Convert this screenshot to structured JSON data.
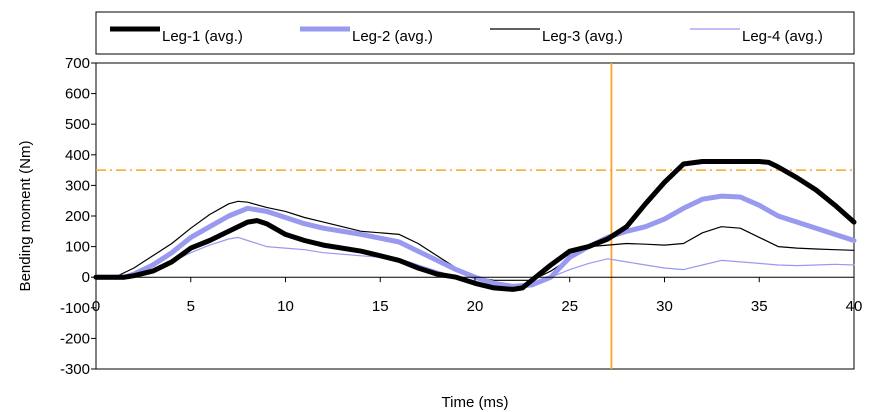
{
  "chart_data": {
    "type": "line",
    "title": "",
    "xlabel": "Time (ms)",
    "ylabel": "Bending moment (Nm)",
    "xlim": [
      0,
      40
    ],
    "ylim": [
      -300,
      700
    ],
    "xticks": [
      0,
      5,
      10,
      15,
      20,
      25,
      30,
      35,
      40
    ],
    "yticks": [
      -300,
      -200,
      -100,
      0,
      100,
      200,
      300,
      400,
      500,
      600,
      700
    ],
    "grid": false,
    "legend": "top",
    "reference_lines": [
      {
        "orientation": "horizontal",
        "value": 350,
        "style": "dash-dot",
        "color": "#f5a623"
      },
      {
        "orientation": "vertical",
        "value": 27.2,
        "style": "solid",
        "color": "#f5a623"
      }
    ],
    "series": [
      {
        "name": "Leg-1 (avg.)",
        "color": "#000000",
        "style": "thick",
        "x": [
          0,
          1.5,
          2,
          3,
          4,
          5,
          6,
          7,
          8,
          8.5,
          9,
          10,
          11,
          12,
          14,
          16,
          17,
          18,
          19,
          20,
          21,
          22,
          22.5,
          23,
          24,
          25,
          26,
          27,
          28,
          29,
          30,
          31,
          32,
          33,
          34,
          35,
          35.5,
          36,
          37,
          38,
          39,
          40
        ],
        "y": [
          0,
          0,
          5,
          20,
          50,
          95,
          120,
          150,
          180,
          185,
          175,
          140,
          120,
          105,
          85,
          55,
          30,
          10,
          0,
          -20,
          -35,
          -40,
          -35,
          -10,
          40,
          85,
          100,
          125,
          165,
          240,
          310,
          370,
          378,
          378,
          378,
          378,
          375,
          360,
          325,
          285,
          235,
          180
        ]
      },
      {
        "name": "Leg-2 (avg.)",
        "color": "#9999f0",
        "style": "thick",
        "x": [
          0,
          1.5,
          2,
          3,
          4,
          5,
          6,
          7,
          8,
          9,
          10,
          11,
          12,
          14,
          16,
          17,
          18,
          19,
          20,
          21,
          22,
          23,
          24,
          25,
          26,
          27,
          28,
          29,
          30,
          31,
          32,
          33,
          34,
          35,
          36,
          37,
          38,
          39,
          40
        ],
        "y": [
          0,
          0,
          10,
          40,
          80,
          130,
          165,
          200,
          225,
          215,
          195,
          175,
          160,
          140,
          115,
          85,
          55,
          25,
          0,
          -20,
          -30,
          -25,
          0,
          65,
          100,
          130,
          150,
          165,
          190,
          225,
          255,
          265,
          262,
          235,
          200,
          180,
          160,
          140,
          120
        ]
      },
      {
        "name": "Leg-3 (avg.)",
        "color": "#000000",
        "style": "thin",
        "x": [
          0,
          1,
          2,
          3,
          4,
          5,
          6,
          7,
          7.5,
          8,
          9,
          10,
          11,
          12,
          14,
          15,
          16,
          17,
          18,
          19,
          20,
          21,
          22,
          23,
          24,
          25,
          26,
          27,
          28,
          29,
          30,
          31,
          32,
          33,
          34,
          35,
          36,
          37,
          38,
          39,
          40
        ],
        "y": [
          0,
          0,
          30,
          70,
          110,
          160,
          205,
          240,
          248,
          245,
          228,
          215,
          195,
          180,
          150,
          145,
          140,
          110,
          70,
          30,
          0,
          -10,
          -10,
          -10,
          20,
          60,
          100,
          105,
          110,
          108,
          105,
          110,
          145,
          165,
          160,
          130,
          100,
          95,
          92,
          90,
          88
        ]
      },
      {
        "name": "Leg-4 (avg.)",
        "color": "#9999f0",
        "style": "thin",
        "x": [
          0,
          1,
          2,
          3,
          4,
          5,
          6,
          7,
          7.5,
          8,
          9,
          10,
          11,
          12,
          14,
          16,
          17,
          18,
          19,
          20,
          21,
          22,
          23,
          24,
          25,
          26,
          27,
          28,
          29,
          30,
          31,
          32,
          33,
          34,
          35,
          36,
          37,
          38,
          39,
          40
        ],
        "y": [
          0,
          0,
          5,
          20,
          50,
          80,
          105,
          125,
          130,
          120,
          100,
          95,
          90,
          80,
          70,
          60,
          40,
          20,
          0,
          -20,
          -25,
          -25,
          -20,
          0,
          25,
          45,
          60,
          50,
          40,
          30,
          25,
          40,
          55,
          50,
          45,
          40,
          38,
          40,
          42,
          40
        ]
      }
    ]
  }
}
